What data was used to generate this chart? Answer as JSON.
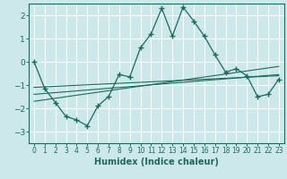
{
  "title": "",
  "xlabel": "Humidex (Indice chaleur)",
  "background_color": "#cce8ea",
  "grid_color": "#b0d4d8",
  "line_color": "#1a6b5e",
  "xlim": [
    -0.5,
    23.5
  ],
  "ylim": [
    -3.5,
    2.5
  ],
  "yticks": [
    -3,
    -2,
    -1,
    0,
    1,
    2
  ],
  "xticks": [
    0,
    1,
    2,
    3,
    4,
    5,
    6,
    7,
    8,
    9,
    10,
    11,
    12,
    13,
    14,
    15,
    16,
    17,
    18,
    19,
    20,
    21,
    22,
    23
  ],
  "main_x": [
    0,
    1,
    2,
    3,
    4,
    5,
    6,
    7,
    8,
    9,
    10,
    11,
    12,
    13,
    14,
    15,
    16,
    17,
    18,
    19,
    20,
    21,
    22,
    23
  ],
  "main_y": [
    0.0,
    -1.15,
    -1.75,
    -2.35,
    -2.5,
    -2.75,
    -1.9,
    -1.5,
    -0.55,
    -0.65,
    0.6,
    1.2,
    2.3,
    1.1,
    2.35,
    1.75,
    1.1,
    0.3,
    -0.45,
    -0.3,
    -0.6,
    -1.5,
    -1.4,
    -0.75
  ],
  "line1_x": [
    0,
    23
  ],
  "line1_y": [
    -1.1,
    -0.6
  ],
  "line2_x": [
    0,
    23
  ],
  "line2_y": [
    -1.4,
    -0.55
  ],
  "line3_x": [
    0,
    23
  ],
  "line3_y": [
    -1.7,
    -0.2
  ]
}
